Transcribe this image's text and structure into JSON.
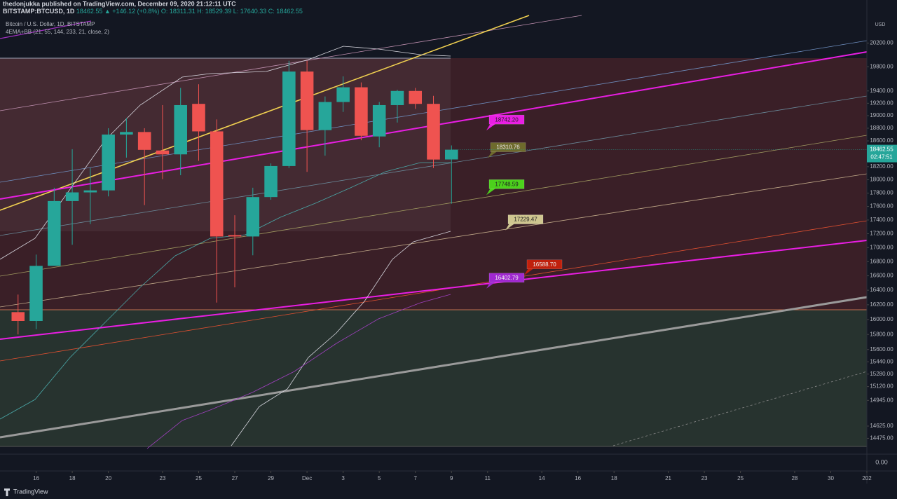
{
  "chart_data": {
    "type": "candlestick",
    "header": {
      "publisher": "thedonjukka published on TradingView.com, December 09, 2020 21:12:11 UTC",
      "symbol": "BITSTAMP:BTCUSD, 1D",
      "quote": "18462.55 ▲ +146.12 (+0.8%) O: 18311.31 H: 18529.39 L: 17640.33 C: 18462.55",
      "legend_title": "Bitcoin / U.S. Dollar, 1D, BITSTAMP",
      "indicator": "4EMA+BB (21, 55, 144, 233, 21, close, 2)"
    },
    "currency": "USD",
    "last_price_label": "18462.55",
    "countdown": "02:47:51",
    "bottom_pane_label": "0.00",
    "footer": "TradingView",
    "up_color": "#26a69a",
    "down_color": "#ef5350",
    "log_scale": true,
    "x": [
      "2020-11-15",
      "2020-11-16",
      "2020-11-17",
      "2020-11-18",
      "2020-11-19",
      "2020-11-20",
      "2020-11-21",
      "2020-11-22",
      "2020-11-23",
      "2020-11-24",
      "2020-11-25",
      "2020-11-26",
      "2020-11-27",
      "2020-11-28",
      "2020-11-29",
      "2020-11-30",
      "2020-12-01",
      "2020-12-02",
      "2020-12-03",
      "2020-12-04",
      "2020-12-05",
      "2020-12-06",
      "2020-12-07",
      "2020-12-08",
      "2020-12-09"
    ],
    "open": [
      16100,
      15980,
      16740,
      17680,
      17810,
      17840,
      18700,
      18740,
      18450,
      18390,
      19190,
      18750,
      17180,
      17160,
      17740,
      18210,
      19720,
      18770,
      19220,
      19460,
      18670,
      19170,
      19400,
      19190,
      18311.31
    ],
    "high": [
      16340,
      16900,
      17880,
      18470,
      18180,
      18800,
      18960,
      18800,
      19170,
      19450,
      19510,
      18940,
      17470,
      17880,
      18250,
      19900,
      19900,
      19310,
      19640,
      19540,
      19220,
      19420,
      19450,
      19320,
      18529.39
    ],
    "low": [
      15800,
      15870,
      16740,
      17040,
      17340,
      17750,
      18340,
      17620,
      18010,
      18070,
      18290,
      16230,
      16440,
      16890,
      17700,
      18180,
      18120,
      18370,
      19060,
      18610,
      18500,
      18890,
      19110,
      18180,
      17640.33
    ],
    "close": [
      15980,
      16740,
      17680,
      17810,
      17840,
      18700,
      18740,
      18460,
      18390,
      19170,
      18750,
      17160,
      17160,
      17740,
      18210,
      19720,
      18770,
      19220,
      19460,
      18680,
      19170,
      19400,
      19190,
      18310,
      18462.55
    ],
    "xlim": [
      "2020-11-14",
      "2021-01-01"
    ],
    "xticks": [
      {
        "value": "2020-11-16",
        "label": "16"
      },
      {
        "value": "2020-11-18",
        "label": "18"
      },
      {
        "value": "2020-11-20",
        "label": "20"
      },
      {
        "value": "2020-11-23",
        "label": "23"
      },
      {
        "value": "2020-11-25",
        "label": "25"
      },
      {
        "value": "2020-11-27",
        "label": "27"
      },
      {
        "value": "2020-11-29",
        "label": "29"
      },
      {
        "value": "2020-12-01",
        "label": "Dec"
      },
      {
        "value": "2020-12-03",
        "label": "3"
      },
      {
        "value": "2020-12-05",
        "label": "5"
      },
      {
        "value": "2020-12-07",
        "label": "7"
      },
      {
        "value": "2020-12-09",
        "label": "9"
      },
      {
        "value": "2020-12-11",
        "label": "11"
      },
      {
        "value": "2020-12-14",
        "label": "14"
      },
      {
        "value": "2020-12-16",
        "label": "16"
      },
      {
        "value": "2020-12-18",
        "label": "18"
      },
      {
        "value": "2020-12-21",
        "label": "21"
      },
      {
        "value": "2020-12-23",
        "label": "23"
      },
      {
        "value": "2020-12-25",
        "label": "25"
      },
      {
        "value": "2020-12-28",
        "label": "28"
      },
      {
        "value": "2020-12-30",
        "label": "30"
      },
      {
        "value": "2021-01-01",
        "label": "202"
      }
    ],
    "ylim": [
      14300,
      20700
    ],
    "yticks": [
      {
        "value": 20200,
        "label": "20200.00"
      },
      {
        "value": 19800,
        "label": "19800.00"
      },
      {
        "value": 19400,
        "label": "19400.00"
      },
      {
        "value": 19200,
        "label": "19200.00"
      },
      {
        "value": 19000,
        "label": "19000.00"
      },
      {
        "value": 18800,
        "label": "18800.00"
      },
      {
        "value": 18600,
        "label": "18600.00"
      },
      {
        "value": 18200,
        "label": "18200.00"
      },
      {
        "value": 18000,
        "label": "18000.00"
      },
      {
        "value": 17800,
        "label": "17800.00"
      },
      {
        "value": 17600,
        "label": "17600.00"
      },
      {
        "value": 17400,
        "label": "17400.00"
      },
      {
        "value": 17200,
        "label": "17200.00"
      },
      {
        "value": 17000,
        "label": "17000.00"
      },
      {
        "value": 16800,
        "label": "16800.00"
      },
      {
        "value": 16600,
        "label": "16600.00"
      },
      {
        "value": 16400,
        "label": "16400.00"
      },
      {
        "value": 16200,
        "label": "16200.00"
      },
      {
        "value": 16000,
        "label": "16000.00"
      },
      {
        "value": 15800,
        "label": "15800.00"
      },
      {
        "value": 15600,
        "label": "15600.00"
      },
      {
        "value": 15440,
        "label": "15440.00"
      },
      {
        "value": 15280,
        "label": "15280.00"
      },
      {
        "value": 15120,
        "label": "15120.00"
      },
      {
        "value": 14945,
        "label": "14945.00"
      },
      {
        "value": 14625,
        "label": "14625.00"
      },
      {
        "value": 14475,
        "label": "14475.00"
      }
    ],
    "callouts": [
      {
        "value": 18742.2,
        "label": "18742.20",
        "color": "#e91ee3"
      },
      {
        "value": 18310.76,
        "label": "18310.76",
        "color": "#6e6a2c"
      },
      {
        "value": 17748.59,
        "label": "17748.59",
        "color": "#4cd11c"
      },
      {
        "value": 17229.47,
        "label": "17229.47",
        "color": "#cfc690"
      },
      {
        "value": 16588.7,
        "label": "16588.70",
        "color": "#c0200c"
      },
      {
        "value": 16402.79,
        "label": "16402.79",
        "color": "#a028d0"
      }
    ]
  }
}
